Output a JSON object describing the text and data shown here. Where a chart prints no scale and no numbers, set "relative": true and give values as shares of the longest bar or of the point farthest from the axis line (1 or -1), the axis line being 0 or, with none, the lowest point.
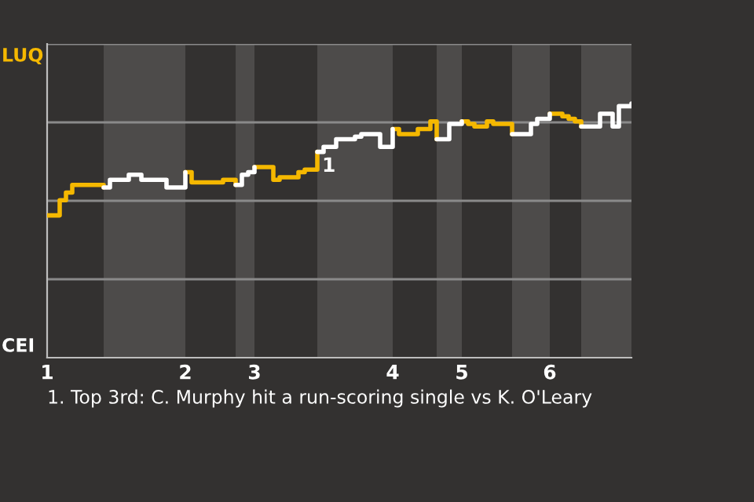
{
  "chart_data": {
    "type": "step",
    "relative": true,
    "categories": [
      "1",
      null,
      null,
      null,
      null,
      null,
      null,
      null,
      null,
      null,
      null,
      null,
      null,
      null,
      null,
      null,
      null,
      null,
      null,
      null,
      null,
      null,
      "2",
      null,
      null,
      null,
      null,
      null,
      null,
      null,
      null,
      null,
      null,
      "3",
      null,
      null,
      null,
      null,
      null,
      null,
      null,
      null,
      null,
      null,
      null,
      null,
      null,
      null,
      null,
      null,
      null,
      null,
      null,
      null,
      null,
      "4",
      null,
      null,
      null,
      null,
      null,
      null,
      null,
      null,
      null,
      null,
      "5",
      null,
      null,
      null,
      null,
      null,
      null,
      null,
      null,
      null,
      null,
      null,
      null,
      null,
      "6",
      null,
      null,
      null,
      null,
      null,
      null,
      null,
      null,
      null,
      null,
      null,
      null,
      null
    ],
    "series": [
      {
        "color": "#f5b800",
        "values": [
          0.56,
          0.56,
          0.62,
          0.65,
          0.68,
          0.68,
          0.68,
          0.68,
          0.68,
          0.67,
          null,
          null,
          null,
          null,
          null,
          null,
          null,
          null,
          null,
          null,
          null,
          null,
          0.73,
          0.69,
          0.69,
          0.69,
          0.69,
          0.69,
          0.7,
          0.7,
          0.68,
          null,
          null,
          0.75,
          0.75,
          0.75,
          0.7,
          0.71,
          0.71,
          0.71,
          0.73,
          0.74,
          0.74,
          0.81,
          null,
          null,
          null,
          null,
          null,
          null,
          null,
          null,
          null,
          null,
          null,
          0.9,
          0.88,
          0.88,
          0.88,
          0.9,
          0.9,
          0.93,
          0.86,
          null,
          null,
          null,
          0.93,
          0.92,
          0.91,
          0.91,
          0.93,
          0.92,
          0.92,
          0.92,
          0.88,
          null,
          null,
          null,
          null,
          null,
          0.96,
          0.96,
          0.95,
          0.94,
          0.93,
          0.91,
          null,
          null,
          null,
          null,
          null,
          null,
          null,
          null
        ]
      },
      {
        "color": "#ffffff",
        "values": [
          null,
          null,
          null,
          null,
          null,
          null,
          null,
          null,
          null,
          0.67,
          0.7,
          0.7,
          0.7,
          0.72,
          0.72,
          0.7,
          0.7,
          0.7,
          0.7,
          0.67,
          0.67,
          0.67,
          0.73,
          null,
          null,
          null,
          null,
          null,
          null,
          null,
          0.68,
          0.72,
          0.73,
          0.75,
          null,
          null,
          null,
          null,
          null,
          null,
          null,
          null,
          null,
          0.81,
          0.83,
          0.83,
          0.86,
          0.86,
          0.86,
          0.87,
          0.88,
          0.88,
          0.88,
          0.83,
          0.83,
          0.9,
          null,
          null,
          null,
          null,
          null,
          null,
          0.86,
          0.86,
          0.92,
          0.92,
          0.93,
          null,
          null,
          null,
          null,
          null,
          null,
          null,
          0.88,
          0.88,
          0.88,
          0.92,
          0.94,
          0.94,
          0.96,
          null,
          null,
          null,
          null,
          0.91,
          0.91,
          0.91,
          0.96,
          0.96,
          0.91,
          0.99,
          0.99,
          1
        ]
      }
    ],
    "grid": "y",
    "annotations": [
      "LUQ",
      "CEI",
      "1",
      "1. Top 3rd: C. Murphy hit a run-scoring single vs K. O'Leary"
    ]
  }
}
